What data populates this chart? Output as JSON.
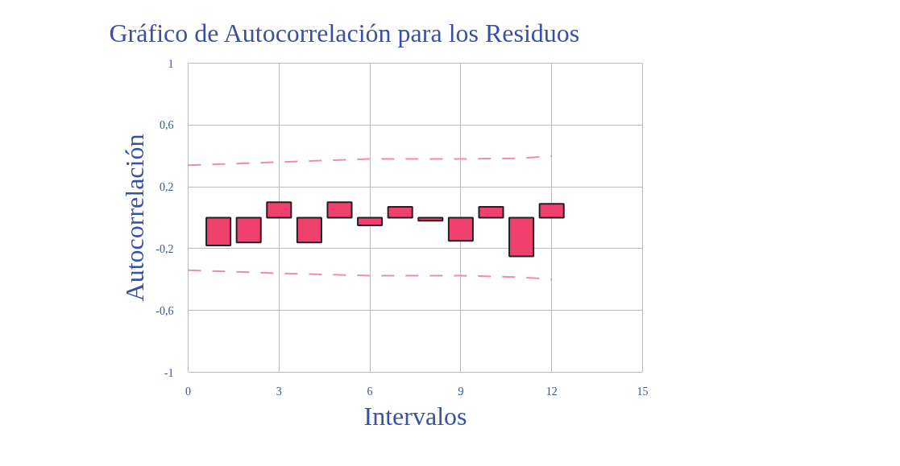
{
  "chart_data": {
    "type": "bar",
    "title": "Gráfico de Autocorrelación para los Residuos",
    "xlabel": "Intervalos",
    "ylabel": "Autocorrelación",
    "series": [
      {
        "color": "#f0406e",
        "x": [
          1,
          2,
          3,
          4,
          5,
          6,
          7,
          8,
          9,
          10,
          11,
          12
        ],
        "values": [
          -0.18,
          -0.16,
          0.1,
          -0.16,
          0.1,
          -0.05,
          0.07,
          -0.02,
          -0.15,
          0.07,
          -0.25,
          0.09
        ]
      },
      {
        "type": "line",
        "color": "#f08cb0",
        "line_style": "dashed",
        "x": [
          0,
          3,
          6,
          9,
          11,
          12
        ],
        "values": [
          0.34,
          0.36,
          0.38,
          0.38,
          0.385,
          0.4
        ]
      },
      {
        "type": "line",
        "color": "#f08cb0",
        "line_style": "dashed",
        "x": [
          0,
          3,
          6,
          9,
          11,
          12
        ],
        "values": [
          -0.34,
          -0.36,
          -0.375,
          -0.375,
          -0.385,
          -0.4
        ]
      }
    ],
    "xlim": [
      0,
      15
    ],
    "xticks": [
      0,
      3,
      6,
      9,
      12,
      15
    ],
    "ylim": [
      -1,
      1
    ],
    "yticks": [
      {
        "value": -1,
        "label": "-1"
      },
      {
        "value": -0.6,
        "label": "-0,6"
      },
      {
        "value": -0.2,
        "label": "-0,2"
      },
      {
        "value": 0.2,
        "label": "0,2"
      },
      {
        "value": 0.6,
        "label": "0,6"
      },
      {
        "value": 1,
        "label": "1"
      }
    ],
    "grid": true
  }
}
